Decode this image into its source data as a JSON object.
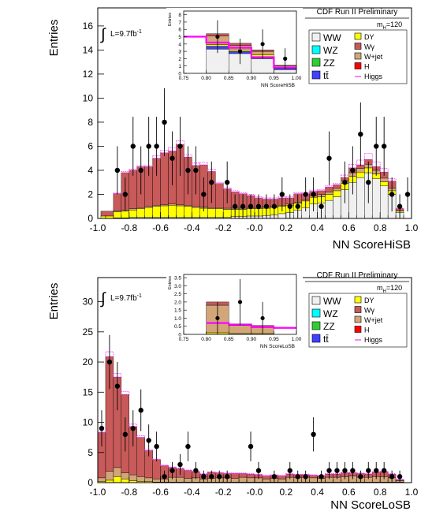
{
  "chart_data": [
    {
      "type": "bar",
      "stacked": true,
      "title": "CDF Run II Preliminary",
      "xlabel": "NN ScoreHiSB",
      "ylabel": "Entries",
      "xlim": [
        -1.0,
        1.0
      ],
      "ylim": [
        0,
        17.5
      ],
      "xticks": [
        "-1.0",
        "-0.8",
        "-0.6",
        "-0.4",
        "-0.2",
        "-0.0",
        "0.2",
        "0.4",
        "0.6",
        "0.8",
        "1.0"
      ],
      "yticks": [
        "0",
        "2",
        "4",
        "6",
        "8",
        "10",
        "12",
        "14",
        "16"
      ],
      "lumi_label": "L=9.7fb",
      "lumi_sup": "-1",
      "mass_label": "m",
      "mass_sub": "H",
      "mass_value": "=120",
      "legend": [
        "WW",
        "WZ",
        "ZZ",
        "tt̄",
        "DY",
        "Wγ",
        "W+jet",
        "H",
        "Higgs"
      ],
      "bin_edges": [
        -0.98,
        -0.9,
        -0.85,
        -0.8,
        -0.75,
        -0.7,
        -0.65,
        -0.6,
        -0.55,
        -0.5,
        -0.45,
        -0.4,
        -0.35,
        -0.3,
        -0.25,
        -0.2,
        -0.15,
        -0.1,
        -0.05,
        0.0,
        0.05,
        0.1,
        0.15,
        0.2,
        0.25,
        0.3,
        0.35,
        0.4,
        0.45,
        0.5,
        0.55,
        0.6,
        0.65,
        0.7,
        0.75,
        0.8,
        0.85,
        0.9,
        0.95
      ],
      "series": [
        {
          "name": "WW",
          "color": "#f0f0f0",
          "values": [
            0.0,
            0.05,
            0.05,
            0.1,
            0.1,
            0.1,
            0.1,
            0.1,
            0.1,
            0.1,
            0.1,
            0.1,
            0.1,
            0.1,
            0.1,
            0.1,
            0.15,
            0.15,
            0.2,
            0.2,
            0.25,
            0.3,
            0.4,
            0.5,
            0.7,
            0.9,
            1.2,
            1.3,
            1.5,
            1.8,
            2.4,
            3.0,
            3.4,
            3.8,
            3.3,
            2.7,
            2.0,
            0.5
          ]
        },
        {
          "name": "DY",
          "color": "#ffff00",
          "values": [
            0.2,
            0.5,
            0.55,
            0.6,
            0.7,
            0.8,
            0.9,
            0.95,
            1.0,
            0.95,
            0.9,
            0.8,
            0.75,
            0.7,
            0.7,
            0.65,
            0.6,
            0.6,
            0.6,
            0.6,
            0.6,
            0.6,
            0.6,
            0.6,
            0.55,
            0.55,
            0.55,
            0.5,
            0.5,
            0.5,
            0.5,
            0.5,
            0.45,
            0.4,
            0.4,
            0.35,
            0.3,
            0.1
          ]
        },
        {
          "name": "W+jet",
          "color": "#d2a679",
          "values": [
            0.0,
            0.1,
            0.1,
            0.1,
            0.1,
            0.1,
            0.1,
            0.1,
            0.1,
            0.1,
            0.1,
            0.1,
            0.1,
            0.1,
            0.1,
            0.1,
            0.1,
            0.1,
            0.1,
            0.1,
            0.1,
            0.1,
            0.1,
            0.1,
            0.1,
            0.1,
            0.1,
            0.2,
            0.2,
            0.2,
            0.2,
            0.3,
            0.3,
            0.3,
            0.3,
            0.3,
            0.2,
            0.1
          ]
        },
        {
          "name": "Wγ",
          "color": "#c85a5a",
          "values": [
            0.4,
            1.4,
            3.1,
            3.2,
            3.4,
            3.3,
            3.9,
            4.3,
            4.4,
            5.0,
            4.0,
            3.4,
            3.5,
            3.0,
            2.0,
            1.6,
            1.35,
            1.2,
            1.0,
            0.8,
            0.65,
            0.6,
            0.6,
            0.5,
            0.7,
            0.5,
            0.4,
            0.3,
            0.4,
            0.3,
            0.3,
            0.4,
            0.3,
            0.4,
            0.3,
            0.5,
            0.6,
            0.1
          ]
        },
        {
          "name": "Higgs",
          "color": "#ff00ff",
          "values": [
            0.0,
            0.05,
            0.1,
            0.1,
            0.1,
            0.1,
            0.2,
            0.2,
            0.3,
            0.3,
            0.2,
            0.2,
            0.2,
            0.2,
            0.1,
            0.1,
            0.1,
            0.1,
            0.1,
            0.1,
            0.1,
            0.1,
            0.1,
            0.1,
            0.1,
            0.1,
            0.1,
            0.1,
            0.1,
            0.1,
            0.2,
            0.3,
            0.4,
            0.5,
            0.4,
            0.3,
            0.2,
            0.05
          ]
        }
      ],
      "data_points": [
        {
          "x": -0.875,
          "y": 4
        },
        {
          "x": -0.825,
          "y": 2
        },
        {
          "x": -0.775,
          "y": 6
        },
        {
          "x": -0.725,
          "y": 4
        },
        {
          "x": -0.675,
          "y": 6
        },
        {
          "x": -0.625,
          "y": 6
        },
        {
          "x": -0.575,
          "y": 8
        },
        {
          "x": -0.525,
          "y": 5
        },
        {
          "x": -0.475,
          "y": 6
        },
        {
          "x": -0.425,
          "y": 4
        },
        {
          "x": -0.375,
          "y": 4
        },
        {
          "x": -0.325,
          "y": 2
        },
        {
          "x": -0.275,
          "y": 3
        },
        {
          "x": -0.175,
          "y": 3
        },
        {
          "x": -0.125,
          "y": 1
        },
        {
          "x": -0.075,
          "y": 1
        },
        {
          "x": -0.025,
          "y": 1
        },
        {
          "x": 0.025,
          "y": 1
        },
        {
          "x": 0.075,
          "y": 1
        },
        {
          "x": 0.125,
          "y": 1
        },
        {
          "x": 0.175,
          "y": 2
        },
        {
          "x": 0.225,
          "y": 1
        },
        {
          "x": 0.275,
          "y": 1
        },
        {
          "x": 0.325,
          "y": 2
        },
        {
          "x": 0.375,
          "y": 2
        },
        {
          "x": 0.425,
          "y": 1
        },
        {
          "x": 0.475,
          "y": 5
        },
        {
          "x": 0.575,
          "y": 3
        },
        {
          "x": 0.625,
          "y": 4
        },
        {
          "x": 0.675,
          "y": 7
        },
        {
          "x": 0.725,
          "y": 3
        },
        {
          "x": 0.775,
          "y": 6
        },
        {
          "x": 0.825,
          "y": 6
        },
        {
          "x": 0.875,
          "y": 2
        },
        {
          "x": 0.925,
          "y": 1
        },
        {
          "x": 0.975,
          "y": 2
        }
      ],
      "inset": {
        "xlabel": "NN ScoreHiSB",
        "ylabel": "Entries",
        "xlim": [
          0.75,
          1.0
        ],
        "ylim": [
          0,
          8.5
        ],
        "xticks": [
          "0.75",
          "0.80",
          "0.85",
          "0.90",
          "0.95",
          "1.00"
        ],
        "yticks": [
          "0",
          "1",
          "2",
          "3",
          "4",
          "5",
          "6",
          "7",
          "8"
        ],
        "bin_edges": [
          0.75,
          0.8,
          0.85,
          0.9,
          0.95,
          1.0
        ],
        "stack": [
          {
            "name": "WW",
            "color": "#f0f0f0",
            "values": [
              0.0,
              3.3,
              2.7,
              2.0,
              0.5
            ]
          },
          {
            "name": "ZZ",
            "color": "#4040ff",
            "values": [
              0.0,
              0.4,
              0.3,
              0.3,
              0.2
            ]
          },
          {
            "name": "DY",
            "color": "#ffff00",
            "values": [
              0.0,
              0.2,
              0.2,
              0.2,
              0.1
            ]
          },
          {
            "name": "W+jet",
            "color": "#d2a679",
            "values": [
              0.0,
              1.2,
              0.6,
              0.5,
              0.2
            ]
          },
          {
            "name": "Wγ",
            "color": "#c85a5a",
            "values": [
              0.0,
              0.3,
              0.3,
              0.2,
              0.1
            ]
          }
        ],
        "higgs": [
          5.0,
          4.2,
          3.5,
          2.2,
          0.8
        ],
        "data_points": [
          {
            "x": 0.825,
            "y": 5
          },
          {
            "x": 0.875,
            "y": 3
          },
          {
            "x": 0.925,
            "y": 4
          },
          {
            "x": 0.975,
            "y": 2
          }
        ]
      }
    },
    {
      "type": "bar",
      "stacked": true,
      "title": "CDF Run II Preliminary",
      "xlabel": "NN ScoreLoSB",
      "ylabel": "Entries",
      "xlim": [
        -1.0,
        1.0
      ],
      "ylim": [
        0,
        34
      ],
      "xticks": [
        "-1.0",
        "-0.8",
        "-0.6",
        "-0.4",
        "-0.2",
        "-0.0",
        "0.2",
        "0.4",
        "0.6",
        "0.8",
        "1.0"
      ],
      "yticks": [
        "0",
        "5",
        "10",
        "15",
        "20",
        "25",
        "30"
      ],
      "lumi_label": "L=9.7fb",
      "lumi_sup": "-1",
      "mass_label": "m",
      "mass_sub": "H",
      "mass_value": "=120",
      "legend": [
        "WW",
        "WZ",
        "ZZ",
        "tt̄",
        "DY",
        "Wγ",
        "W+jet",
        "H",
        "Higgs"
      ],
      "bin_edges": [
        -1.0,
        -0.95,
        -0.9,
        -0.85,
        -0.8,
        -0.75,
        -0.7,
        -0.65,
        -0.6,
        -0.55,
        -0.5,
        -0.45,
        -0.4,
        -0.35,
        -0.3,
        -0.25,
        -0.2,
        -0.15,
        -0.1,
        -0.05,
        0.0,
        0.05,
        0.1,
        0.15,
        0.2,
        0.25,
        0.3,
        0.35,
        0.4,
        0.45,
        0.5,
        0.55,
        0.6,
        0.65,
        0.7,
        0.75,
        0.8,
        0.85,
        0.9,
        0.95
      ],
      "series": [
        {
          "name": "DY",
          "color": "#ffff00",
          "values": [
            0.2,
            0.4,
            1.0,
            0.6,
            0.3,
            0.2,
            0.2,
            0.1,
            0.1,
            0.1,
            0.1,
            0.1,
            0.1,
            0.1,
            0.1,
            0.1,
            0.1,
            0.1,
            0.1,
            0.1,
            0.1,
            0.1,
            0.1,
            0.1,
            0.1,
            0.1,
            0.1,
            0.1,
            0.1,
            0.1,
            0.1,
            0.1,
            0.1,
            0.1,
            0.1,
            0.1,
            0.1,
            0.1,
            0.1
          ]
        },
        {
          "name": "W+jet",
          "color": "#d2a679",
          "values": [
            0.6,
            1.5,
            1.5,
            1.0,
            1.0,
            0.8,
            0.6,
            0.5,
            0.5,
            0.8,
            0.8,
            0.6,
            0.7,
            0.5,
            0.6,
            0.7,
            0.7,
            0.6,
            0.8,
            0.7,
            0.7,
            0.5,
            0.6,
            0.5,
            0.8,
            0.7,
            0.8,
            0.7,
            0.6,
            0.8,
            0.8,
            0.9,
            1.0,
            0.8,
            0.8,
            0.9,
            0.9,
            0.7,
            0.2
          ]
        },
        {
          "name": "Wγ",
          "color": "#c85a5a",
          "values": [
            7.5,
            19.0,
            15.0,
            13.0,
            8.0,
            6.5,
            4.5,
            3.2,
            2.2,
            1.6,
            1.4,
            1.3,
            1.0,
            0.8,
            1.0,
            0.8,
            0.7,
            0.8,
            0.6,
            0.6,
            0.5,
            0.5,
            0.5,
            0.5,
            0.5,
            0.5,
            0.4,
            0.4,
            0.4,
            0.5,
            0.5,
            0.6,
            0.5,
            0.6,
            0.5,
            0.7,
            0.8,
            0.6,
            0.2
          ]
        },
        {
          "name": "Higgs",
          "color": "#ff00ff",
          "values": [
            0.2,
            0.8,
            0.6,
            0.5,
            0.4,
            0.3,
            0.2,
            0.1,
            0.1,
            0.1,
            0.1,
            0.1,
            0.1,
            0.1,
            0.1,
            0.1,
            0.1,
            0.1,
            0.1,
            0.1,
            0.1,
            0.1,
            0.1,
            0.1,
            0.1,
            0.1,
            0.1,
            0.1,
            0.1,
            0.1,
            0.1,
            0.1,
            0.1,
            0.1,
            0.1,
            0.1,
            0.1,
            0.1,
            0.05
          ]
        }
      ],
      "data_points": [
        {
          "x": -0.975,
          "y": 9
        },
        {
          "x": -0.925,
          "y": 20
        },
        {
          "x": -0.875,
          "y": 16
        },
        {
          "x": -0.825,
          "y": 8
        },
        {
          "x": -0.775,
          "y": 9
        },
        {
          "x": -0.725,
          "y": 12
        },
        {
          "x": -0.675,
          "y": 7
        },
        {
          "x": -0.625,
          "y": 6
        },
        {
          "x": -0.575,
          "y": 1
        },
        {
          "x": -0.525,
          "y": 2
        },
        {
          "x": -0.475,
          "y": 3
        },
        {
          "x": -0.425,
          "y": 6
        },
        {
          "x": -0.375,
          "y": 2
        },
        {
          "x": -0.325,
          "y": 1
        },
        {
          "x": -0.275,
          "y": 1
        },
        {
          "x": -0.225,
          "y": 1
        },
        {
          "x": -0.175,
          "y": 1
        },
        {
          "x": -0.025,
          "y": 6
        },
        {
          "x": 0.025,
          "y": 2
        },
        {
          "x": 0.125,
          "y": 1
        },
        {
          "x": 0.225,
          "y": 2
        },
        {
          "x": 0.275,
          "y": 1
        },
        {
          "x": 0.325,
          "y": 1
        },
        {
          "x": 0.375,
          "y": 8
        },
        {
          "x": 0.425,
          "y": 1
        },
        {
          "x": 0.475,
          "y": 2
        },
        {
          "x": 0.525,
          "y": 2
        },
        {
          "x": 0.575,
          "y": 2
        },
        {
          "x": 0.625,
          "y": 2
        },
        {
          "x": 0.675,
          "y": 1
        },
        {
          "x": 0.725,
          "y": 2
        },
        {
          "x": 0.775,
          "y": 2
        },
        {
          "x": 0.825,
          "y": 2
        },
        {
          "x": 0.875,
          "y": 1
        },
        {
          "x": 0.925,
          "y": 1
        }
      ],
      "inset": {
        "xlabel": "NN ScoreLoSB",
        "ylabel": "Entries",
        "xlim": [
          0.75,
          1.0
        ],
        "ylim": [
          0,
          3.7
        ],
        "xticks": [
          "0.75",
          "0.80",
          "0.85",
          "0.90",
          "0.95",
          "1.00"
        ],
        "yticks": [
          "0",
          "0.5",
          "1.0",
          "1.5",
          "2.0",
          "2.5",
          "3.0",
          "3.5"
        ],
        "bin_edges": [
          0.75,
          0.8,
          0.85,
          0.9,
          0.95,
          1.0
        ],
        "stack": [
          {
            "name": "DY",
            "color": "#ffff00",
            "values": [
              0.0,
              0.1,
              0.05,
              0.05,
              0.0
            ]
          },
          {
            "name": "W+jet",
            "color": "#d2a679",
            "values": [
              0.0,
              1.7,
              0.5,
              0.4,
              0.0
            ]
          },
          {
            "name": "Wγ",
            "color": "#c85a5a",
            "values": [
              0.0,
              0.2,
              0.1,
              0.1,
              0.0
            ]
          }
        ],
        "higgs": [
          0.0,
          0.7,
          0.6,
          0.45,
          0.4
        ],
        "data_points": [
          {
            "x": 0.825,
            "y": 1
          },
          {
            "x": 0.875,
            "y": 2
          },
          {
            "x": 0.925,
            "y": 1
          }
        ]
      }
    }
  ]
}
